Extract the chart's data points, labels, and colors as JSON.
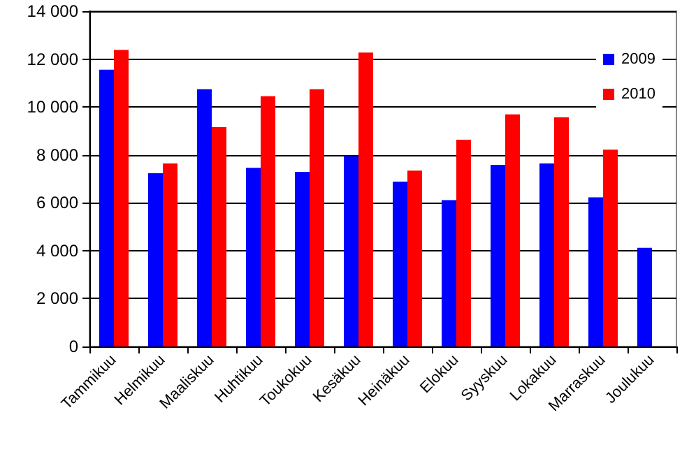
{
  "chart_data": {
    "type": "bar",
    "categories": [
      "Tammikuu",
      "Helmikuu",
      "Maaliskuu",
      "Huhtikuu",
      "Toukokuu",
      "Kesäkuu",
      "Heinäkuu",
      "Elokuu",
      "Syyskuu",
      "Lokakuu",
      "Marraskuu",
      "Joulukuu"
    ],
    "series": [
      {
        "name": "2009",
        "color": "#0000ff",
        "values": [
          11560,
          7230,
          10740,
          7460,
          7290,
          7950,
          6880,
          6110,
          7580,
          7640,
          6230,
          4120
        ]
      },
      {
        "name": "2010",
        "color": "#ff0000",
        "values": [
          12380,
          7640,
          9160,
          10450,
          10740,
          12270,
          7340,
          8630,
          9690,
          9570,
          8220,
          null
        ]
      }
    ],
    "ylim": [
      0,
      14000
    ],
    "yticks": [
      {
        "value": 0,
        "label": "0"
      },
      {
        "value": 2000,
        "label": "2 000"
      },
      {
        "value": 4000,
        "label": "4 000"
      },
      {
        "value": 6000,
        "label": "6 000"
      },
      {
        "value": 8000,
        "label": "8 000"
      },
      {
        "value": 10000,
        "label": "10 000"
      },
      {
        "value": 12000,
        "label": "12 000"
      },
      {
        "value": 14000,
        "label": "14 000"
      }
    ],
    "grid": "y",
    "legend": "top right"
  }
}
